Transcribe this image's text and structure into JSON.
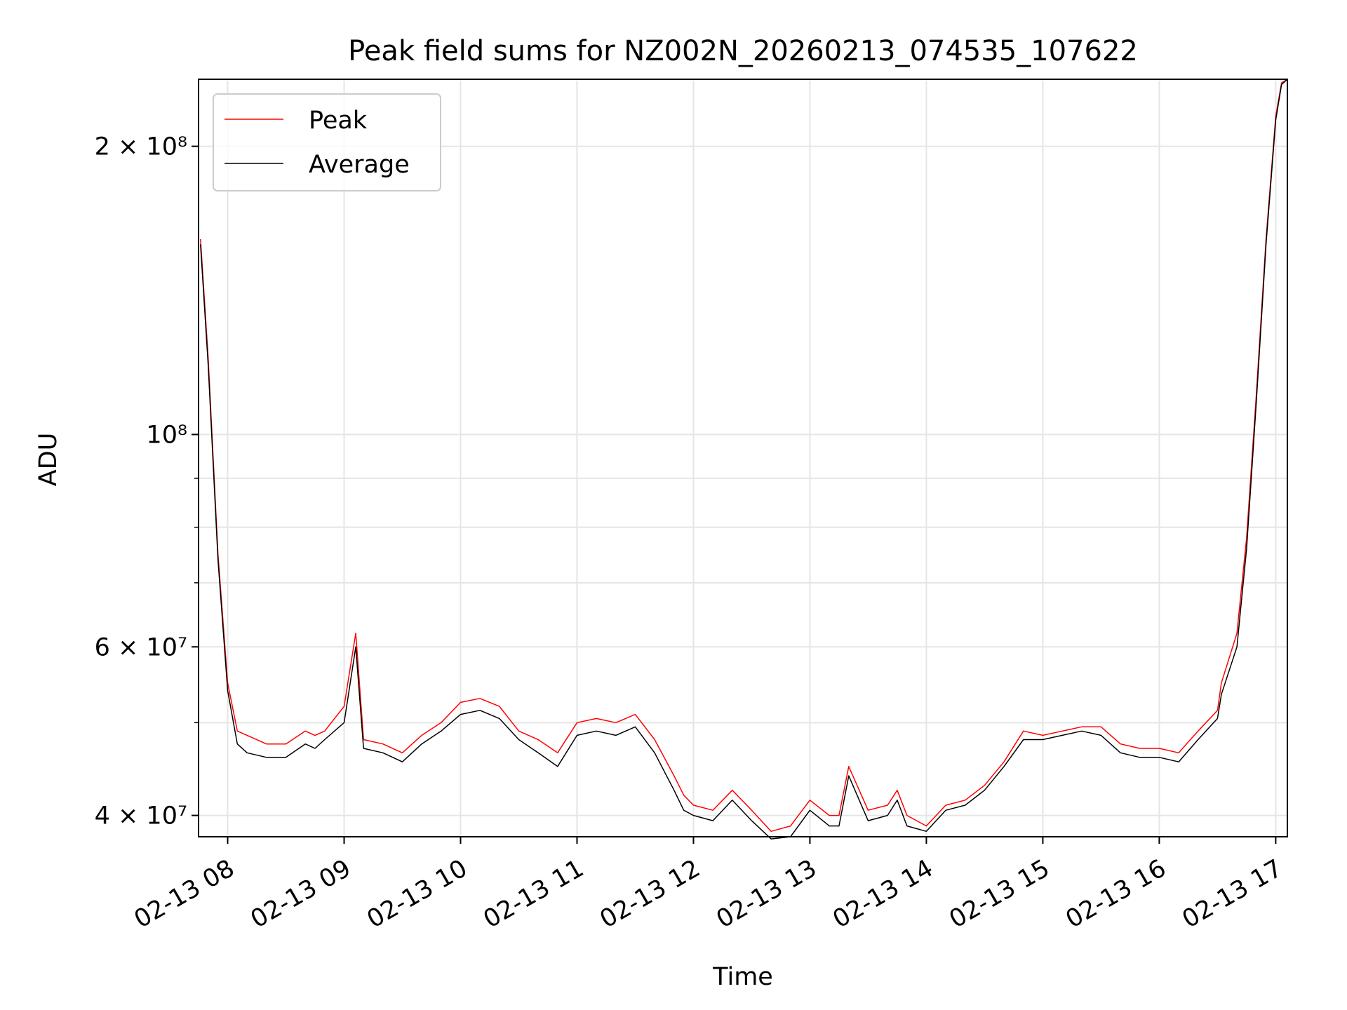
{
  "chart_data": {
    "type": "line",
    "title": "Peak field sums for NZ002N_20260213_074535_107622",
    "xlabel": "Time",
    "ylabel": "ADU",
    "yscale": "log",
    "grid": true,
    "legend_position": "upper-left",
    "xlim": [
      "2026-02-13 07:45",
      "2026-02-13 17:06"
    ],
    "ylim": [
      38000000,
      235000000
    ],
    "x_ticks": [
      "2026-02-13 08:00",
      "2026-02-13 09:00",
      "2026-02-13 10:00",
      "2026-02-13 11:00",
      "2026-02-13 12:00",
      "2026-02-13 13:00",
      "2026-02-13 14:00",
      "2026-02-13 15:00",
      "2026-02-13 16:00",
      "2026-02-13 17:00"
    ],
    "x_tick_labels": [
      "02-13 08",
      "02-13 09",
      "02-13 10",
      "02-13 11",
      "02-13 12",
      "02-13 13",
      "02-13 14",
      "02-13 15",
      "02-13 16",
      "02-13 17"
    ],
    "y_major_ticks": [
      {
        "value": 40000000,
        "label": "4 × 10⁷"
      },
      {
        "value": 60000000,
        "label": "6 × 10⁷"
      },
      {
        "value": 100000000,
        "label": "10⁸"
      },
      {
        "value": 200000000,
        "label": "2 × 10⁸"
      }
    ],
    "y_minor_ticks": [
      50000000,
      70000000,
      80000000,
      90000000
    ],
    "series": [
      {
        "name": "Peak",
        "color": "#ff0000",
        "x": [
          "2026-02-13 07:46",
          "2026-02-13 07:50",
          "2026-02-13 07:55",
          "2026-02-13 08:00",
          "2026-02-13 08:05",
          "2026-02-13 08:10",
          "2026-02-13 08:20",
          "2026-02-13 08:30",
          "2026-02-13 08:40",
          "2026-02-13 08:45",
          "2026-02-13 08:50",
          "2026-02-13 09:00",
          "2026-02-13 09:06",
          "2026-02-13 09:10",
          "2026-02-13 09:20",
          "2026-02-13 09:30",
          "2026-02-13 09:40",
          "2026-02-13 09:50",
          "2026-02-13 10:00",
          "2026-02-13 10:10",
          "2026-02-13 10:20",
          "2026-02-13 10:30",
          "2026-02-13 10:40",
          "2026-02-13 10:50",
          "2026-02-13 11:00",
          "2026-02-13 11:10",
          "2026-02-13 11:20",
          "2026-02-13 11:30",
          "2026-02-13 11:40",
          "2026-02-13 11:50",
          "2026-02-13 11:55",
          "2026-02-13 12:00",
          "2026-02-13 12:10",
          "2026-02-13 12:20",
          "2026-02-13 12:30",
          "2026-02-13 12:40",
          "2026-02-13 12:50",
          "2026-02-13 13:00",
          "2026-02-13 13:10",
          "2026-02-13 13:15",
          "2026-02-13 13:20",
          "2026-02-13 13:30",
          "2026-02-13 13:40",
          "2026-02-13 13:45",
          "2026-02-13 13:50",
          "2026-02-13 14:00",
          "2026-02-13 14:10",
          "2026-02-13 14:20",
          "2026-02-13 14:30",
          "2026-02-13 14:40",
          "2026-02-13 14:50",
          "2026-02-13 15:00",
          "2026-02-13 15:10",
          "2026-02-13 15:20",
          "2026-02-13 15:30",
          "2026-02-13 15:40",
          "2026-02-13 15:50",
          "2026-02-13 16:00",
          "2026-02-13 16:10",
          "2026-02-13 16:20",
          "2026-02-13 16:30",
          "2026-02-13 16:32",
          "2026-02-13 16:40",
          "2026-02-13 16:45",
          "2026-02-13 16:50",
          "2026-02-13 16:55",
          "2026-02-13 17:00",
          "2026-02-13 17:03",
          "2026-02-13 17:06"
        ],
        "y": [
          160000000,
          120000000,
          75000000,
          55000000,
          49000000,
          48500000,
          47500000,
          47500000,
          49000000,
          48500000,
          49000000,
          52000000,
          62000000,
          48000000,
          47500000,
          46500000,
          48500000,
          50000000,
          52500000,
          53000000,
          52000000,
          49000000,
          48000000,
          46500000,
          50000000,
          50500000,
          50000000,
          51000000,
          48000000,
          44000000,
          42000000,
          41000000,
          40500000,
          42500000,
          40500000,
          38500000,
          39000000,
          41500000,
          40000000,
          40000000,
          45000000,
          40500000,
          41000000,
          42500000,
          40000000,
          39000000,
          41000000,
          41500000,
          43000000,
          45500000,
          49000000,
          48500000,
          49000000,
          49500000,
          49500000,
          47500000,
          47000000,
          47000000,
          46500000,
          49000000,
          51500000,
          55000000,
          62000000,
          78000000,
          110000000,
          160000000,
          215000000,
          233000000,
          235000000
        ]
      },
      {
        "name": "Average",
        "color": "#000000",
        "x": [
          "2026-02-13 07:46",
          "2026-02-13 07:50",
          "2026-02-13 07:55",
          "2026-02-13 08:00",
          "2026-02-13 08:05",
          "2026-02-13 08:10",
          "2026-02-13 08:20",
          "2026-02-13 08:30",
          "2026-02-13 08:40",
          "2026-02-13 08:45",
          "2026-02-13 08:50",
          "2026-02-13 09:00",
          "2026-02-13 09:06",
          "2026-02-13 09:10",
          "2026-02-13 09:20",
          "2026-02-13 09:30",
          "2026-02-13 09:40",
          "2026-02-13 09:50",
          "2026-02-13 10:00",
          "2026-02-13 10:10",
          "2026-02-13 10:20",
          "2026-02-13 10:30",
          "2026-02-13 10:40",
          "2026-02-13 10:50",
          "2026-02-13 11:00",
          "2026-02-13 11:10",
          "2026-02-13 11:20",
          "2026-02-13 11:30",
          "2026-02-13 11:40",
          "2026-02-13 11:50",
          "2026-02-13 11:55",
          "2026-02-13 12:00",
          "2026-02-13 12:10",
          "2026-02-13 12:20",
          "2026-02-13 12:30",
          "2026-02-13 12:40",
          "2026-02-13 12:50",
          "2026-02-13 13:00",
          "2026-02-13 13:10",
          "2026-02-13 13:15",
          "2026-02-13 13:20",
          "2026-02-13 13:30",
          "2026-02-13 13:40",
          "2026-02-13 13:45",
          "2026-02-13 13:50",
          "2026-02-13 14:00",
          "2026-02-13 14:10",
          "2026-02-13 14:20",
          "2026-02-13 14:30",
          "2026-02-13 14:40",
          "2026-02-13 14:50",
          "2026-02-13 15:00",
          "2026-02-13 15:10",
          "2026-02-13 15:20",
          "2026-02-13 15:30",
          "2026-02-13 15:40",
          "2026-02-13 15:50",
          "2026-02-13 16:00",
          "2026-02-13 16:10",
          "2026-02-13 16:20",
          "2026-02-13 16:30",
          "2026-02-13 16:32",
          "2026-02-13 16:40",
          "2026-02-13 16:45",
          "2026-02-13 16:50",
          "2026-02-13 16:55",
          "2026-02-13 17:00",
          "2026-02-13 17:03",
          "2026-02-13 17:06"
        ],
        "y": [
          158000000,
          118000000,
          74000000,
          54000000,
          47500000,
          46500000,
          46000000,
          46000000,
          47500000,
          47000000,
          48000000,
          50000000,
          60000000,
          47000000,
          46500000,
          45500000,
          47500000,
          49000000,
          51000000,
          51500000,
          50500000,
          48000000,
          46500000,
          45000000,
          48500000,
          49000000,
          48500000,
          49500000,
          46500000,
          42500000,
          40500000,
          40000000,
          39500000,
          41500000,
          39500000,
          37800000,
          38000000,
          40500000,
          39000000,
          39000000,
          44000000,
          39500000,
          40000000,
          41500000,
          39000000,
          38500000,
          40500000,
          41000000,
          42500000,
          45000000,
          48000000,
          48000000,
          48500000,
          49000000,
          48500000,
          46500000,
          46000000,
          46000000,
          45500000,
          48000000,
          50500000,
          53500000,
          60000000,
          76000000,
          108000000,
          158000000,
          213000000,
          232000000,
          235000000
        ]
      }
    ]
  }
}
